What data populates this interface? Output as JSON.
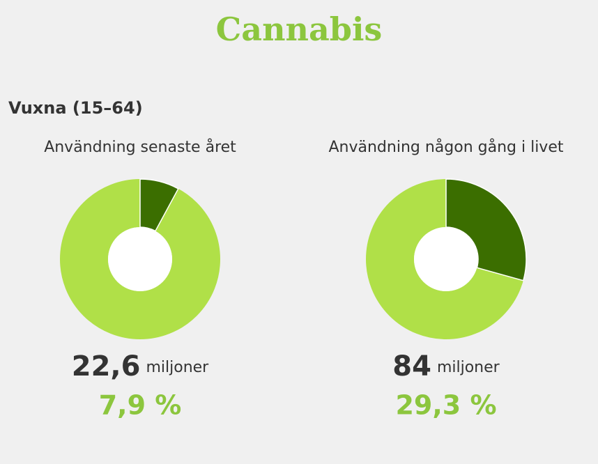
{
  "header": {
    "title": "Cannabis",
    "subtitle": "Vuxna (15–64)"
  },
  "chart_data": [
    {
      "type": "donut",
      "title": "Användning senaste året",
      "ylim": [
        0,
        100
      ],
      "values": [
        7.9
      ],
      "value_labels": [
        "7,9 %"
      ],
      "color": "#3b6e00",
      "ring_color": "#b0e048",
      "count": {
        "value": 22.6,
        "label": "22,6"
      },
      "unit": "miljoner"
    },
    {
      "type": "donut",
      "title": "Användning någon gång i livet",
      "ylim": [
        0,
        100
      ],
      "values": [
        29.3
      ],
      "value_labels": [
        "29,3 %"
      ],
      "color": "#3b6e00",
      "ring_color": "#b0e048",
      "count": 84,
      "unit": "miljoner"
    }
  ]
}
